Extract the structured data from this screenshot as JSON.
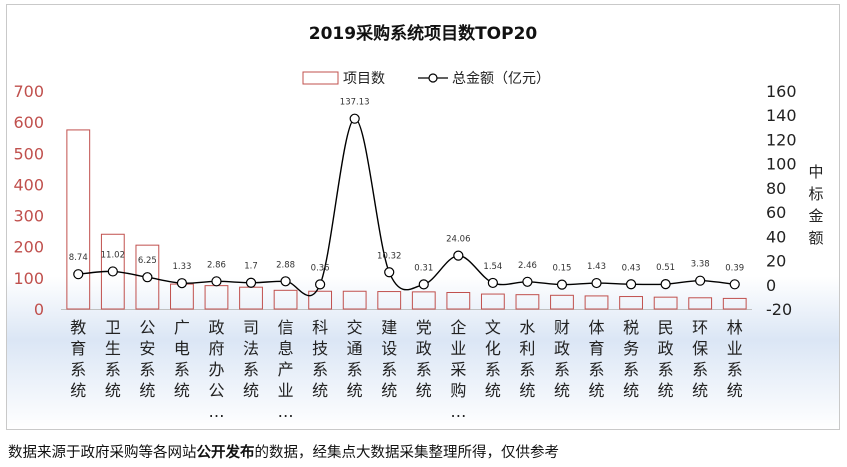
{
  "chart_data": {
    "type": "bar",
    "title": "2019采购系统项目数TOP20",
    "categories": [
      "教育系统",
      "卫生系统",
      "公安系统",
      "广电系统",
      "政府办公…",
      "司法系统",
      "信息产业…",
      "科技系统",
      "交通系统",
      "建设系统",
      "党政系统",
      "企业采购…",
      "文化系统",
      "水利系统",
      "财政系统",
      "体育系统",
      "税务系统",
      "民政系统",
      "环保系统",
      "林业系统"
    ],
    "series": [
      {
        "name": "项目数",
        "type": "bar",
        "axis": "left",
        "color": "#c0504d",
        "values": [
          575,
          240,
          205,
          80,
          75,
          70,
          60,
          57,
          57,
          56,
          55,
          53,
          48,
          46,
          44,
          42,
          40,
          38,
          36,
          34
        ]
      },
      {
        "name": "总金额（亿元）",
        "type": "line",
        "axis": "right",
        "color": "#000000",
        "values": [
          8.74,
          11.02,
          6.25,
          1.33,
          2.86,
          1.7,
          2.88,
          0.36,
          137.13,
          10.32,
          0.31,
          24.06,
          1.54,
          2.46,
          0.15,
          1.43,
          0.43,
          0.51,
          3.38,
          0.39
        ],
        "labels": [
          "8.74",
          "11.02",
          "6.25",
          "1.33",
          "2.86",
          "1.7",
          "2.88",
          "0.36",
          "137.13",
          "10.32",
          "0.31",
          "24.06",
          "1.54",
          "2.46",
          "0.15",
          "1.43",
          "0.43",
          "0.51",
          "3.38",
          "0.39"
        ]
      }
    ],
    "y_left": {
      "ylim": [
        0,
        700
      ],
      "ticks": [
        "0",
        "100",
        "200",
        "300",
        "400",
        "500",
        "600",
        "700"
      ],
      "color": "#c0504d"
    },
    "y_right": {
      "ylim": [
        -20,
        160
      ],
      "ticks": [
        "-20",
        "0",
        "20",
        "40",
        "60",
        "80",
        "100",
        "120",
        "140",
        "160"
      ],
      "label": "中标金额"
    },
    "legend": {
      "position": "top-center"
    },
    "grid": false
  },
  "caption": {
    "before": "数据来源于政府采购等各网站",
    "bold": "公开发布",
    "after": "的数据，经集点大数据采集整理所得，仅供参考"
  }
}
